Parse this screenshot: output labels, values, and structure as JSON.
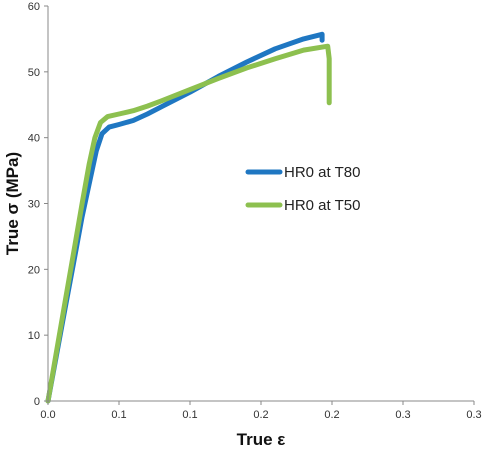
{
  "chart_data": {
    "type": "line",
    "xlabel": "True ε",
    "ylabel": "True σ (MPa)",
    "xlim": [
      0,
      0.3
    ],
    "ylim": [
      0,
      60
    ],
    "x_ticks": [
      0.0,
      0.05,
      0.1,
      0.15,
      0.2,
      0.25,
      0.3
    ],
    "x_tick_labels": [
      "0.0",
      "0.1",
      "0.1",
      "0.2",
      "0.2",
      "0.3",
      "0.3"
    ],
    "y_ticks": [
      0,
      10,
      20,
      30,
      40,
      50,
      60
    ],
    "y_tick_labels": [
      "0",
      "10",
      "20",
      "30",
      "40",
      "50",
      "60"
    ],
    "grid": false,
    "legend_position": "center-right",
    "series": [
      {
        "name": "HR0 at T80",
        "color": "#1f77c2",
        "points": [
          [
            0.0,
            0
          ],
          [
            0.006,
            7
          ],
          [
            0.012,
            14
          ],
          [
            0.018,
            21
          ],
          [
            0.024,
            28
          ],
          [
            0.03,
            34
          ],
          [
            0.034,
            38
          ],
          [
            0.038,
            40.6
          ],
          [
            0.043,
            41.6
          ],
          [
            0.05,
            42.0
          ],
          [
            0.06,
            42.6
          ],
          [
            0.07,
            43.6
          ],
          [
            0.08,
            44.7
          ],
          [
            0.1,
            46.9
          ],
          [
            0.12,
            49.3
          ],
          [
            0.14,
            51.5
          ],
          [
            0.16,
            53.5
          ],
          [
            0.18,
            55.0
          ],
          [
            0.193,
            55.7
          ],
          [
            0.193,
            54.8
          ]
        ]
      },
      {
        "name": "HR0 at T50",
        "color": "#8dc04f",
        "points": [
          [
            0.0,
            0
          ],
          [
            0.006,
            7.5
          ],
          [
            0.012,
            15
          ],
          [
            0.018,
            22.5
          ],
          [
            0.024,
            30
          ],
          [
            0.029,
            36
          ],
          [
            0.033,
            40
          ],
          [
            0.037,
            42.3
          ],
          [
            0.042,
            43.2
          ],
          [
            0.05,
            43.6
          ],
          [
            0.06,
            44.1
          ],
          [
            0.07,
            44.8
          ],
          [
            0.08,
            45.6
          ],
          [
            0.1,
            47.3
          ],
          [
            0.12,
            49.0
          ],
          [
            0.14,
            50.6
          ],
          [
            0.16,
            52.0
          ],
          [
            0.18,
            53.3
          ],
          [
            0.197,
            53.9
          ],
          [
            0.198,
            52.0
          ],
          [
            0.198,
            45.3
          ]
        ]
      }
    ]
  }
}
